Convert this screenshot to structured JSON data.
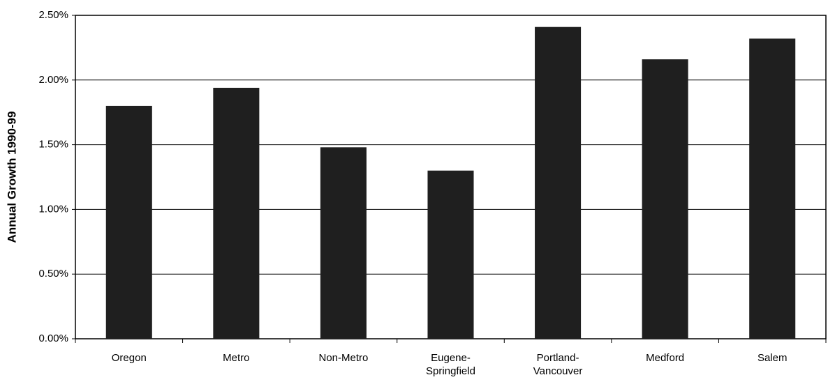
{
  "chart_data": {
    "type": "bar",
    "y_label": "Annual Growth 1990-99",
    "categories": [
      "Oregon",
      "Metro",
      "Non-Metro",
      "Eugene-\nSpringfield",
      "Portland-\nVancouver",
      "Medford",
      "Salem"
    ],
    "values": [
      1.8,
      1.94,
      1.48,
      1.3,
      2.41,
      2.16,
      2.32
    ],
    "color": "#1f1f1f",
    "ylim": [
      0,
      2.5
    ],
    "yticks": [
      {
        "value": 0,
        "label": "0.00%"
      },
      {
        "value": 0.5,
        "label": "0.50%"
      },
      {
        "value": 1,
        "label": "1.00%"
      },
      {
        "value": 1.5,
        "label": "1.50%"
      },
      {
        "value": 2,
        "label": "2.00%"
      },
      {
        "value": 2.5,
        "label": "2.50%"
      }
    ],
    "grid": true
  }
}
